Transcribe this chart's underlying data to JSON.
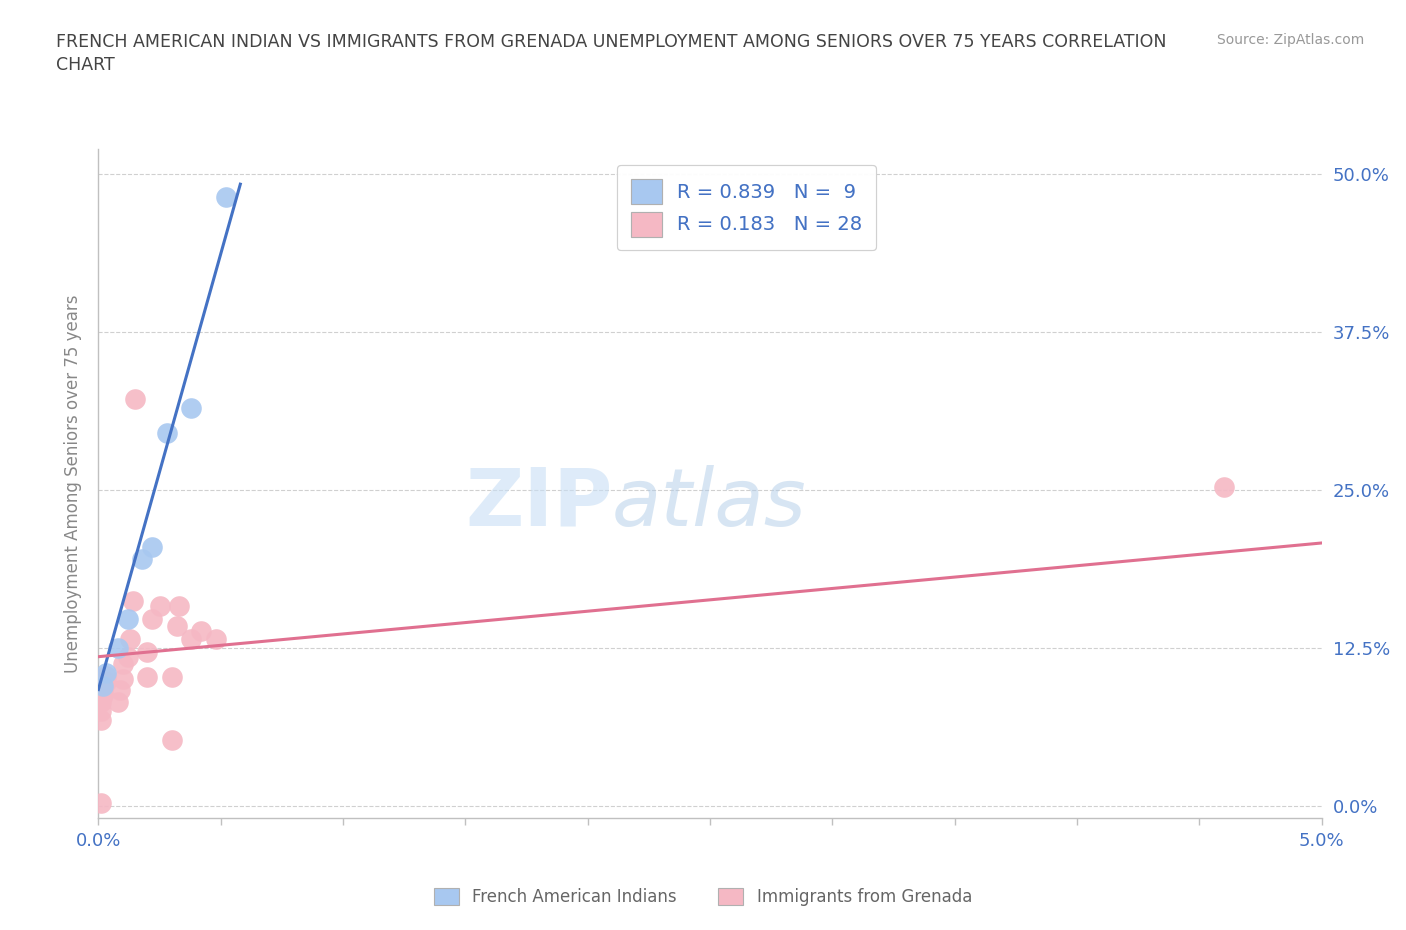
{
  "title_line1": "FRENCH AMERICAN INDIAN VS IMMIGRANTS FROM GRENADA UNEMPLOYMENT AMONG SENIORS OVER 75 YEARS CORRELATION",
  "title_line2": "CHART",
  "source": "Source: ZipAtlas.com",
  "ylabel": "Unemployment Among Seniors over 75 years",
  "yticks_labels": [
    "0.0%",
    "12.5%",
    "25.0%",
    "37.5%",
    "50.0%"
  ],
  "ytick_vals": [
    0.0,
    0.125,
    0.25,
    0.375,
    0.5
  ],
  "xticks_labels": [
    "0.0%",
    "",
    "",
    "",
    "",
    "",
    "",
    "",
    "",
    "",
    "5.0%"
  ],
  "xtick_vals": [
    0.0,
    0.005,
    0.01,
    0.015,
    0.02,
    0.025,
    0.03,
    0.035,
    0.04,
    0.045,
    0.05
  ],
  "xlim": [
    0.0,
    0.05
  ],
  "ylim": [
    -0.01,
    0.52
  ],
  "watermark_zip": "ZIP",
  "watermark_atlas": "atlas",
  "legend_blue_label": "French American Indians",
  "legend_pink_label": "Immigrants from Grenada",
  "R_blue": "0.839",
  "N_blue": "9",
  "R_pink": "0.183",
  "N_pink": "28",
  "blue_color": "#a8c8f0",
  "pink_color": "#f5b8c4",
  "blue_line_color": "#4472c4",
  "pink_line_color": "#e07090",
  "blue_scatter": [
    [
      0.0002,
      0.095
    ],
    [
      0.0003,
      0.105
    ],
    [
      0.0008,
      0.125
    ],
    [
      0.0012,
      0.148
    ],
    [
      0.0018,
      0.195
    ],
    [
      0.0022,
      0.205
    ],
    [
      0.0028,
      0.295
    ],
    [
      0.0038,
      0.315
    ],
    [
      0.0052,
      0.482
    ]
  ],
  "pink_scatter": [
    [
      0.0001,
      0.068
    ],
    [
      0.0001,
      0.075
    ],
    [
      0.0001,
      0.082
    ],
    [
      0.0002,
      0.088
    ],
    [
      0.0002,
      0.092
    ],
    [
      0.0003,
      0.098
    ],
    [
      0.0003,
      0.103
    ],
    [
      0.0001,
      0.002
    ],
    [
      0.0008,
      0.082
    ],
    [
      0.0009,
      0.092
    ],
    [
      0.001,
      0.1
    ],
    [
      0.001,
      0.112
    ],
    [
      0.0012,
      0.118
    ],
    [
      0.0013,
      0.132
    ],
    [
      0.0014,
      0.162
    ],
    [
      0.0015,
      0.322
    ],
    [
      0.002,
      0.102
    ],
    [
      0.002,
      0.122
    ],
    [
      0.0022,
      0.148
    ],
    [
      0.0025,
      0.158
    ],
    [
      0.003,
      0.052
    ],
    [
      0.003,
      0.102
    ],
    [
      0.0032,
      0.142
    ],
    [
      0.0033,
      0.158
    ],
    [
      0.0038,
      0.132
    ],
    [
      0.0042,
      0.138
    ],
    [
      0.0048,
      0.132
    ],
    [
      0.046,
      0.252
    ]
  ],
  "blue_line_x": [
    0.0,
    0.0058
  ],
  "blue_line_y": [
    0.092,
    0.492
  ],
  "pink_line_x": [
    0.0,
    0.05
  ],
  "pink_line_y": [
    0.118,
    0.208
  ],
  "background_color": "#ffffff",
  "grid_color": "#d0d0d0",
  "title_color": "#444444",
  "tick_label_color": "#4472c4",
  "bottom_label_color": "#666666",
  "axis_color": "#c0c0c0"
}
